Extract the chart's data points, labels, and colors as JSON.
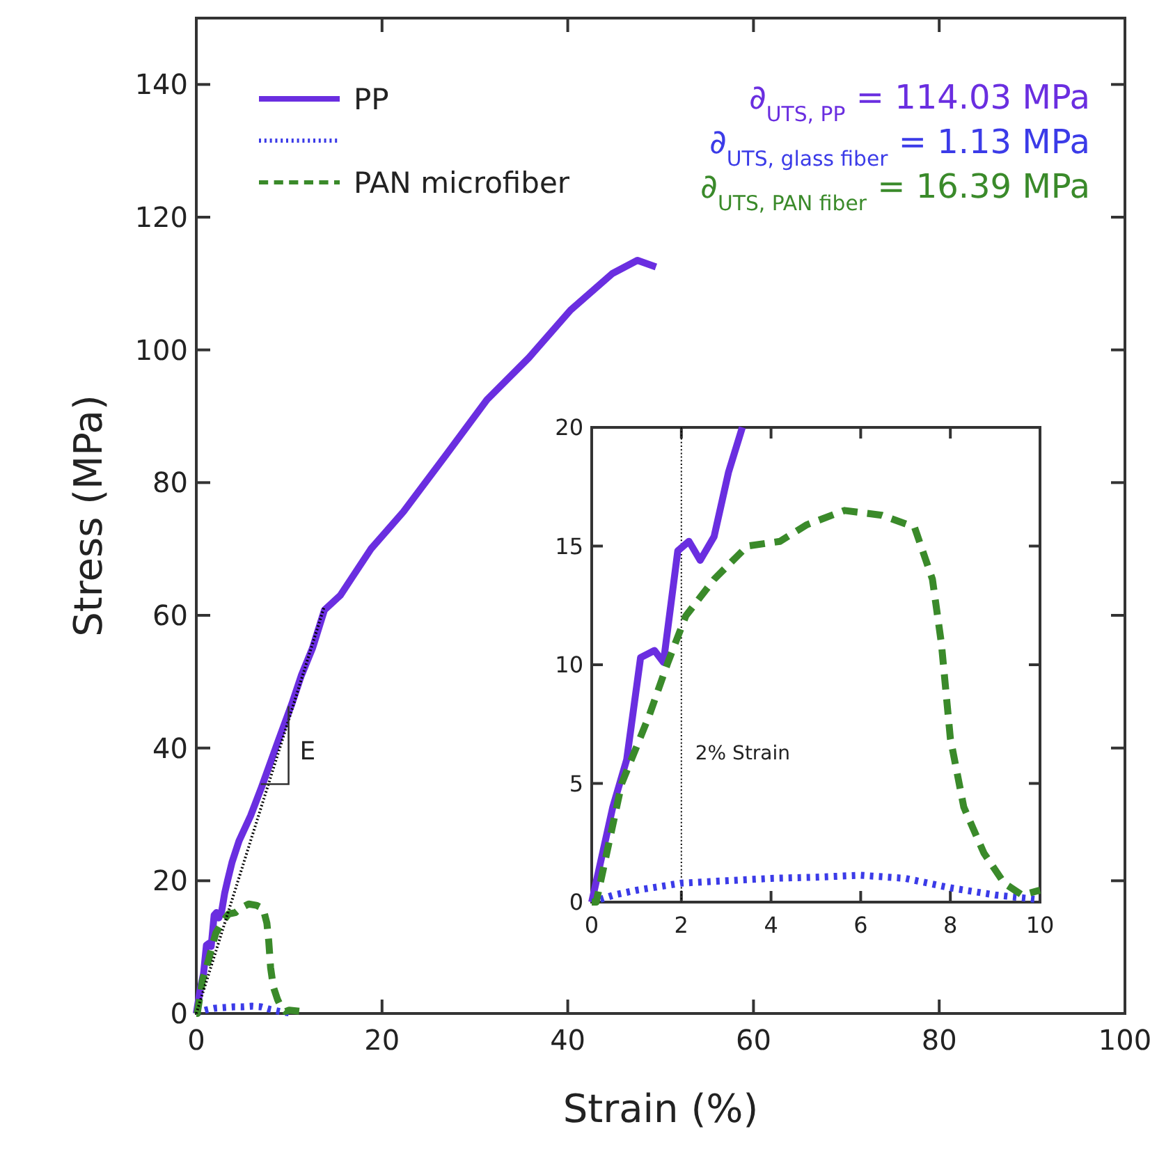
{
  "chart_data": [
    {
      "type": "line",
      "xlabel": "Strain (%)",
      "ylabel": "Stress (MPa)",
      "xlim": [
        0,
        100
      ],
      "ylim": [
        0,
        150
      ],
      "xticks": [
        0,
        20,
        40,
        60,
        80,
        100
      ],
      "yticks": [
        0,
        20,
        40,
        60,
        80,
        100,
        120,
        140
      ],
      "grid": false,
      "legend": "top left",
      "marker": "none",
      "series": [
        {
          "name": "PP",
          "color": "#6a2ee0",
          "line_style": "solid",
          "x": [
            0,
            0.47,
            0.78,
            1.09,
            1.4,
            1.6,
            1.92,
            2.17,
            2.42,
            2.73,
            3.05,
            3.36,
            3.85,
            4.6,
            5.85,
            7,
            8.8,
            10.3,
            11.3,
            12.5,
            13.8,
            15.5,
            18.8,
            22.3,
            26.8,
            31.3,
            35.8,
            40.3,
            44.8,
            47.5,
            49.5
          ],
          "values": [
            0,
            4,
            6,
            10.3,
            10.6,
            10.1,
            14.8,
            15.2,
            14.4,
            15.4,
            18.1,
            20,
            22.8,
            26,
            29.8,
            34,
            41,
            46.7,
            50.9,
            55,
            60.8,
            63,
            70,
            75.6,
            84,
            92.5,
            98.8,
            106,
            111.5,
            113.5,
            112.5
          ]
        },
        {
          "color": "#3b3be8",
          "line_style": "dotted",
          "x": [
            0,
            0.5,
            1,
            2,
            3,
            4,
            5,
            6,
            7,
            8,
            9,
            10
          ],
          "values": [
            0,
            0.3,
            0.5,
            0.8,
            0.9,
            1,
            1,
            1.1,
            1,
            0.6,
            0.3,
            0.1
          ]
        },
        {
          "name": "PAN microfiber",
          "color": "#3a8a2a",
          "line_style": "dashed",
          "x": [
            0,
            0.1,
            0.67,
            1.29,
            1.7,
            2.1,
            2.73,
            3.47,
            4.2,
            4.8,
            5.64,
            6.47,
            7.2,
            7.6,
            7.8,
            8.0,
            8.3,
            8.75,
            9.2,
            9.6,
            10,
            11.3
          ],
          "values": [
            0,
            0,
            5,
            7.9,
            10.1,
            12.1,
            13.6,
            15,
            15.2,
            15.9,
            16.5,
            16.3,
            15.8,
            13.6,
            10.9,
            6.9,
            4,
            2.1,
            0.8,
            0.3,
            0.5,
            0.3
          ]
        },
        {
          "type": "line",
          "color": "#000000",
          "line_style": "dotted",
          "x": [
            0,
            13.8
          ],
          "values": [
            0,
            61.4
          ]
        }
      ],
      "annotations": [
        "∂$_{UTS, PP}$ = 114.03 MPa",
        "∂$_{UTS, glass fiber}$ = 1.13 MPa",
        "∂$_{UTS, PAN fiber}$ = 16.39 MPa",
        "E"
      ]
    },
    {
      "type": "line",
      "xlim": [
        0,
        10
      ],
      "ylim": [
        0,
        20
      ],
      "xticks": [
        0,
        2,
        4,
        6,
        8,
        10
      ],
      "yticks": [
        0,
        5,
        10,
        15,
        20
      ],
      "grid": false,
      "marker": "none",
      "series": [
        {
          "color": "#6a2ee0",
          "line_style": "solid",
          "x": [
            0,
            0.47,
            0.78,
            1.09,
            1.4,
            1.6,
            1.92,
            2.17,
            2.42,
            2.73,
            3.05,
            3.36
          ],
          "values": [
            0,
            4,
            6,
            10.3,
            10.6,
            10.1,
            14.8,
            15.2,
            14.4,
            15.4,
            18.1,
            20
          ]
        },
        {
          "color": "#3b3be8",
          "line_style": "dotted",
          "x": [
            0,
            0.5,
            1,
            2,
            3,
            4,
            5,
            6,
            7,
            8,
            9,
            10
          ],
          "values": [
            0,
            0.3,
            0.5,
            0.8,
            0.9,
            1.0,
            1.05,
            1.13,
            1.0,
            0.6,
            0.3,
            0.1
          ]
        },
        {
          "color": "#3a8a2a",
          "line_style": "dashed",
          "x": [
            0,
            0.1,
            0.67,
            1.29,
            1.7,
            2.1,
            2.73,
            3.47,
            4.2,
            4.8,
            5.64,
            6.47,
            7.2,
            7.6,
            7.8,
            8.0,
            8.3,
            8.75,
            9.2,
            9.6,
            10
          ],
          "values": [
            0,
            0,
            5,
            7.9,
            10.1,
            12.06,
            13.6,
            15,
            15.2,
            15.9,
            16.5,
            16.3,
            15.8,
            13.6,
            10.9,
            6.9,
            4,
            2.06,
            0.8,
            0.3,
            0.5
          ]
        }
      ],
      "ref_lines": [
        {
          "axis": "x",
          "value": 2,
          "label": "2% Strain",
          "color": "#000000",
          "line_style": "dotted"
        }
      ]
    }
  ]
}
